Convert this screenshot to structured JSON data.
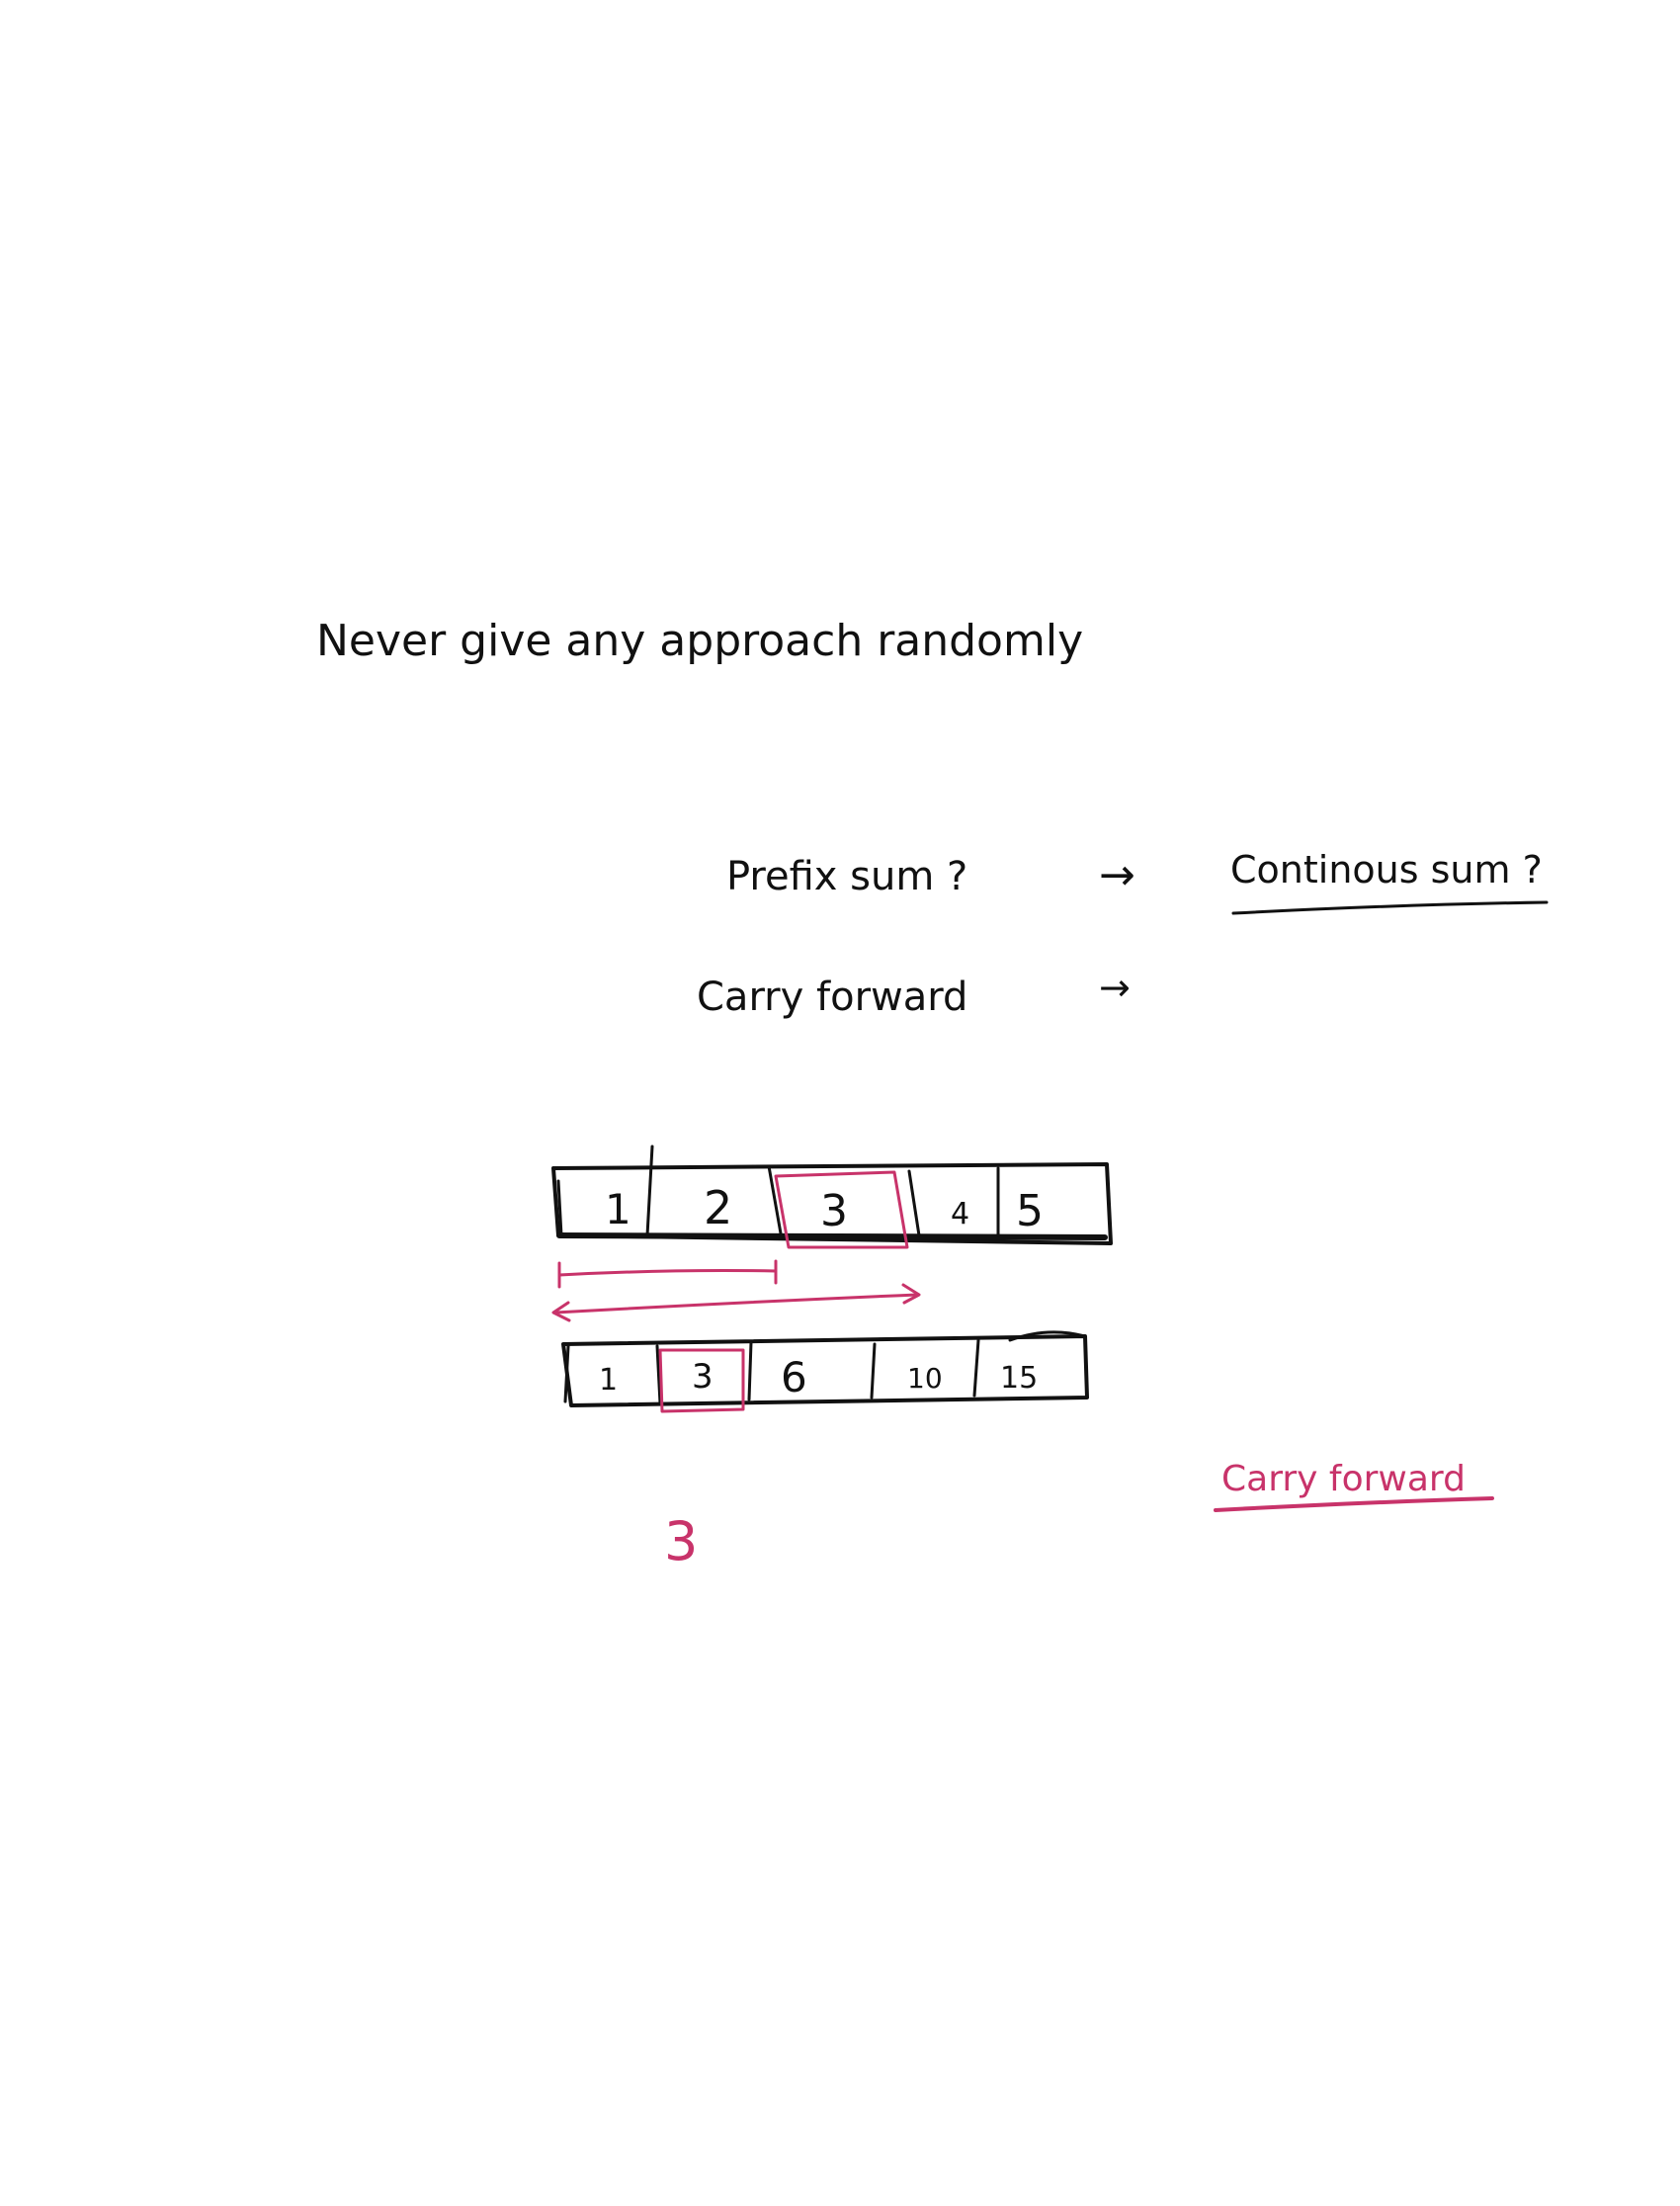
{
  "colors": {
    "ink": "#111111",
    "accent": "#c8336a",
    "background": "#ffffff"
  },
  "note": {
    "heading": "Never give any approach randomly",
    "line1_left": "Prefix sum ?",
    "line1_right": "Continous sum ?",
    "line2": "Carry forward",
    "arrow_glyph": "→"
  },
  "array_original": {
    "cells": [
      "1",
      "2",
      "3",
      "4",
      "5"
    ],
    "highlighted_index": 2
  },
  "array_prefix": {
    "cells": [
      "1",
      "3",
      "6",
      "10",
      "15"
    ],
    "highlighted_index": 1
  },
  "pink_annotations": {
    "side_note": "Carry forward",
    "result_value": "3"
  }
}
